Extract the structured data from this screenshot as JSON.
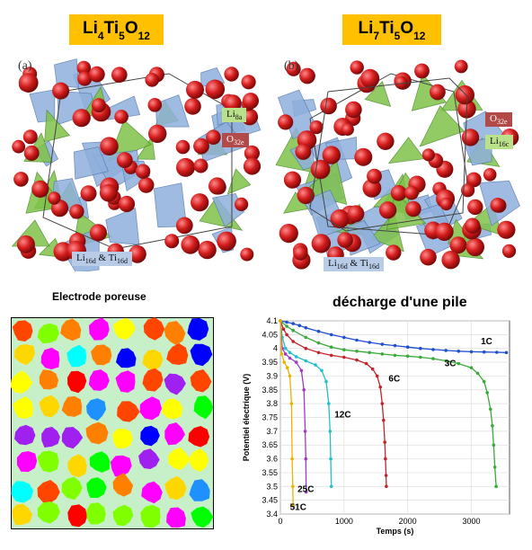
{
  "structures": {
    "left": {
      "formula": {
        "parts": [
          {
            "t": "Li"
          },
          {
            "s": "4"
          },
          {
            "t": "Ti"
          },
          {
            "s": "5"
          },
          {
            "t": "O"
          },
          {
            "s": "12"
          }
        ]
      },
      "panel_label": "(a)",
      "tags": [
        {
          "parts": [
            {
              "t": "Li"
            },
            {
              "s": "8a"
            }
          ],
          "color": "#b9e08a"
        },
        {
          "parts": [
            {
              "t": "O"
            },
            {
              "s": "32e"
            }
          ],
          "color": "#b24a4a"
        },
        {
          "parts": [
            {
              "t": "Li"
            },
            {
              "s": "16d"
            },
            {
              "t": " & Ti"
            },
            {
              "s": "16d"
            }
          ],
          "color": "#b8cce8"
        }
      ]
    },
    "right": {
      "formula": {
        "parts": [
          {
            "t": "Li"
          },
          {
            "s": "7"
          },
          {
            "t": "Ti"
          },
          {
            "s": "5"
          },
          {
            "t": "O"
          },
          {
            "s": "12"
          }
        ]
      },
      "panel_label": "(b)",
      "tags": [
        {
          "parts": [
            {
              "t": "O"
            },
            {
              "s": "32e"
            }
          ],
          "color": "#b24a4a"
        },
        {
          "parts": [
            {
              "t": "Li"
            },
            {
              "s": "16c"
            }
          ],
          "color": "#b9e08a"
        },
        {
          "parts": [
            {
              "t": "Li"
            },
            {
              "s": "16d"
            },
            {
              "t": " & Ti"
            },
            {
              "s": "16d"
            }
          ],
          "color": "#b8cce8"
        }
      ]
    }
  },
  "electrode": {
    "title": "Electrode poreuse",
    "background": "#c8f0c8"
  },
  "chart_data": {
    "type": "line",
    "title": "décharge d'une pile",
    "xlabel": "Temps (s)",
    "ylabel": "Potentiel électrique (V)",
    "xlim": [
      0,
      3600
    ],
    "ylim": [
      3.4,
      4.1
    ],
    "xticks": [
      0,
      1000,
      2000,
      3000
    ],
    "yticks": [
      3.4,
      3.45,
      3.5,
      3.55,
      3.6,
      3.65,
      3.7,
      3.75,
      3.8,
      3.85,
      3.9,
      3.95,
      4.0,
      4.05,
      4.1
    ],
    "ytick_labels": [
      "3.4",
      "3.45",
      "3.5",
      "3.55",
      "3.6",
      "3.65",
      "3.7",
      "3.75",
      "3.8",
      "3.85",
      "3.9",
      "3.95",
      "4",
      "4.05",
      "4.1"
    ],
    "series": [
      {
        "name": "1C",
        "color": "#1f4fd1",
        "label_at": [
          3150,
          4.015
        ],
        "x": [
          0,
          100,
          200,
          300,
          400,
          600,
          800,
          1000,
          1200,
          1400,
          1600,
          1800,
          2000,
          2200,
          2400,
          2600,
          2800,
          3000,
          3200,
          3400,
          3550
        ],
        "y": [
          4.1,
          4.095,
          4.09,
          4.083,
          4.075,
          4.062,
          4.05,
          4.04,
          4.03,
          4.022,
          4.015,
          4.01,
          4.005,
          4.0,
          3.996,
          3.993,
          3.99,
          3.988,
          3.987,
          3.986,
          3.985
        ]
      },
      {
        "name": "3C",
        "color": "#3aaa3a",
        "label_at": [
          2580,
          3.935
        ],
        "x": [
          0,
          100,
          200,
          400,
          600,
          800,
          1000,
          1200,
          1400,
          1600,
          1800,
          2000,
          2200,
          2400,
          2600,
          2800,
          3000,
          3100,
          3200,
          3250,
          3300,
          3330,
          3350,
          3370,
          3390
        ],
        "y": [
          4.1,
          4.08,
          4.065,
          4.04,
          4.02,
          4.005,
          3.995,
          3.99,
          3.985,
          3.98,
          3.975,
          3.972,
          3.968,
          3.963,
          3.955,
          3.945,
          3.93,
          3.91,
          3.88,
          3.84,
          3.78,
          3.72,
          3.65,
          3.57,
          3.5
        ]
      },
      {
        "name": "6C",
        "color": "#c0262b",
        "label_at": [
          1700,
          3.88
        ],
        "x": [
          0,
          50,
          100,
          200,
          400,
          600,
          800,
          1000,
          1200,
          1350,
          1450,
          1520,
          1570,
          1600,
          1620,
          1640,
          1650,
          1660,
          1665
        ],
        "y": [
          4.1,
          4.07,
          4.05,
          4.025,
          4.0,
          3.985,
          3.975,
          3.968,
          3.958,
          3.945,
          3.925,
          3.9,
          3.86,
          3.8,
          3.74,
          3.66,
          3.6,
          3.54,
          3.5
        ]
      },
      {
        "name": "12C",
        "color": "#22c0c8",
        "label_at": [
          850,
          3.75
        ],
        "x": [
          0,
          30,
          80,
          150,
          250,
          400,
          550,
          650,
          720,
          760,
          780,
          790,
          800
        ],
        "y": [
          4.1,
          4.04,
          4.0,
          3.985,
          3.97,
          3.955,
          3.94,
          3.92,
          3.88,
          3.8,
          3.7,
          3.6,
          3.5
        ]
      },
      {
        "name": "25C",
        "color": "#a23ac8",
        "label_at": [
          270,
          3.48
        ],
        "x": [
          0,
          30,
          80,
          150,
          250,
          330,
          370,
          390,
          400,
          405
        ],
        "y": [
          4.1,
          4.0,
          3.98,
          3.965,
          3.95,
          3.92,
          3.85,
          3.7,
          3.6,
          3.48
        ]
      },
      {
        "name": "51C",
        "color": "#e8b400",
        "label_at": [
          150,
          3.415
        ],
        "x": [
          0,
          20,
          60,
          110,
          150,
          175,
          185,
          195,
          200
        ],
        "y": [
          4.1,
          3.98,
          3.95,
          3.93,
          3.9,
          3.8,
          3.6,
          3.5,
          3.43
        ]
      }
    ]
  }
}
